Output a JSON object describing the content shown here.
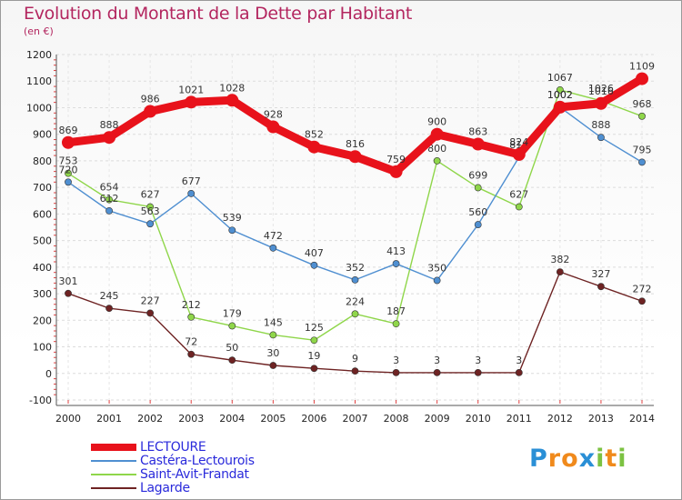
{
  "chart_data": {
    "type": "line",
    "title": "Evolution du Montant de la Dette par Habitant",
    "subtitle": "(en €)",
    "xlabel": "",
    "ylabel": "",
    "x": [
      "2000",
      "2001",
      "2002",
      "2003",
      "2004",
      "2005",
      "2006",
      "2007",
      "2008",
      "2009",
      "2010",
      "2011",
      "2012",
      "2013",
      "2014"
    ],
    "ylim": [
      -100,
      1200
    ],
    "yticks": [
      "-100",
      "0",
      "100",
      "200",
      "300",
      "400",
      "500",
      "600",
      "700",
      "800",
      "900",
      "1000",
      "1100",
      "1200"
    ],
    "grid": "horizontal dashed",
    "legend_position": "bottom-left",
    "series": [
      {
        "name": "LECTOURE",
        "color": "#e8121b",
        "values": [
          869,
          888,
          986,
          1021,
          1028,
          928,
          852,
          816,
          759,
          900,
          863,
          824,
          1002,
          1016,
          1109
        ],
        "labels": [
          "869",
          "888",
          "986",
          "1021",
          "1028",
          "928",
          "852",
          "816",
          "759",
          "900",
          "863",
          "824",
          "1002",
          "1016",
          "1109"
        ]
      },
      {
        "name": "Castéra-Lectourois",
        "color": "#4f8fd1",
        "values": [
          720,
          612,
          563,
          677,
          539,
          472,
          407,
          352,
          413,
          350,
          560,
          814,
          1002,
          888,
          795
        ],
        "labels": [
          "720",
          "612",
          "563",
          "677",
          "539",
          "472",
          "407",
          "352",
          "413",
          "350",
          "560",
          "814",
          "1002",
          "888",
          "795"
        ]
      },
      {
        "name": "Saint-Avit-Frandat",
        "color": "#8fd64a",
        "values": [
          753,
          654,
          627,
          212,
          179,
          145,
          125,
          224,
          187,
          800,
          699,
          627,
          1067,
          1026,
          968
        ],
        "labels": [
          "753",
          "654",
          "627",
          "212",
          "179",
          "145",
          "125",
          "224",
          "187",
          "800",
          "699",
          "627",
          "1067",
          "1026",
          "968"
        ]
      },
      {
        "name": "Lagarde",
        "color": "#6e2323",
        "values": [
          301,
          245,
          227,
          72,
          50,
          30,
          19,
          9,
          3,
          3,
          3,
          3,
          382,
          327,
          272
        ],
        "labels": [
          "301",
          "245",
          "227",
          "72",
          "50",
          "30",
          "19",
          "9",
          "3",
          "3",
          "3",
          "3",
          "382",
          "327",
          "272"
        ]
      }
    ]
  },
  "branding": {
    "logo_letters": [
      "P",
      "r",
      "o",
      "x",
      "i",
      "t",
      "i"
    ],
    "logo_colors": [
      "#2a8fd6",
      "#f08a1c",
      "#f08a1c",
      "#2a8fd6",
      "#7cc242",
      "#f08a1c",
      "#7cc242"
    ]
  }
}
